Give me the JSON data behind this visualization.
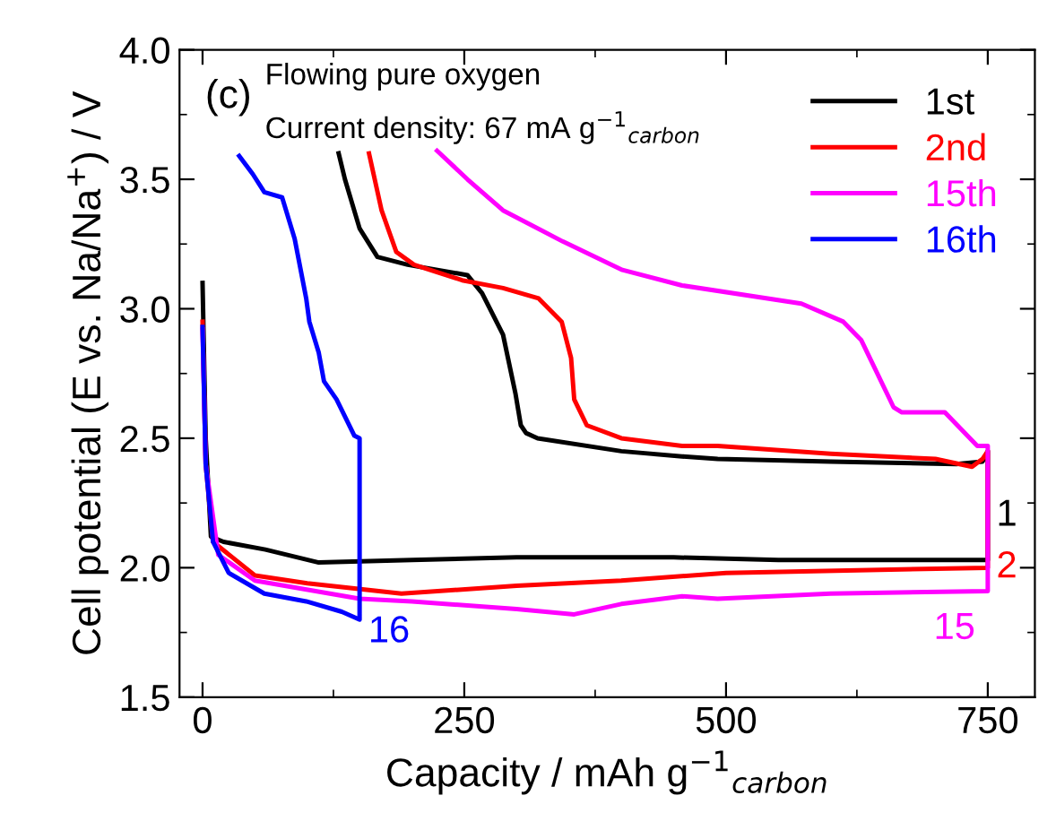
{
  "chart_data": {
    "type": "line",
    "xlabel": "Capacity / mAh g$^{−1}$$_{carbon}$",
    "ylabel": "Cell potential (E vs. Na/Na$^{+}$) / V",
    "xlim": [
      -22,
      795
    ],
    "ylim": [
      1.5,
      4.0
    ],
    "xticks": [
      0,
      250,
      500,
      750
    ],
    "yticks": [
      1.5,
      {
        "value": 2,
        "label": "2.0"
      },
      2.5,
      {
        "value": 3,
        "label": "3.0"
      },
      3.5,
      {
        "value": 4,
        "label": "4.0"
      }
    ],
    "grid": false,
    "legend": "top right",
    "line_style": "solid",
    "marker": "none",
    "series": [
      {
        "name": "1st",
        "color": "#000000",
        "x": [
          0,
          3,
          8,
          20,
          60,
          111,
          200,
          300,
          450,
          550,
          650,
          750,
          750,
          745,
          720,
          600,
          492,
          458,
          400,
          320,
          309,
          304,
          299,
          287,
          267,
          253,
          196,
          167,
          150,
          136,
          130
        ],
        "values": [
          3.1,
          2.5,
          2.12,
          2.1,
          2.07,
          2.02,
          2.03,
          2.04,
          2.04,
          2.03,
          2.03,
          2.03,
          2.45,
          2.41,
          2.4,
          2.41,
          2.42,
          2.43,
          2.45,
          2.5,
          2.52,
          2.55,
          2.67,
          2.9,
          3.06,
          3.13,
          3.17,
          3.2,
          3.31,
          3.5,
          3.6
        ]
      },
      {
        "name": "2nd",
        "color": "#ff0000",
        "x": [
          0,
          3,
          10,
          50,
          100,
          190,
          300,
          400,
          500,
          750,
          750,
          745,
          735,
          700,
          600,
          492,
          458,
          400,
          367,
          355,
          352,
          343,
          321,
          287,
          248,
          202,
          185,
          171,
          159
        ],
        "values": [
          2.95,
          2.4,
          2.1,
          1.97,
          1.94,
          1.9,
          1.93,
          1.95,
          1.98,
          2.0,
          2.45,
          2.42,
          2.39,
          2.42,
          2.44,
          2.47,
          2.47,
          2.5,
          2.55,
          2.65,
          2.81,
          2.95,
          3.04,
          3.08,
          3.11,
          3.17,
          3.22,
          3.38,
          3.6
        ]
      },
      {
        "name": "15th",
        "color": "#ff00ff",
        "x": [
          0,
          3,
          15,
          50,
          150,
          200,
          300,
          355,
          400,
          458,
          492,
          600,
          750,
          750,
          740,
          709,
          668,
          660,
          629,
          612,
          572,
          458,
          401,
          344,
          287,
          253,
          224
        ],
        "values": [
          2.92,
          2.4,
          2.05,
          1.95,
          1.88,
          1.87,
          1.84,
          1.82,
          1.86,
          1.89,
          1.88,
          1.9,
          1.91,
          2.47,
          2.47,
          2.6,
          2.6,
          2.62,
          2.88,
          2.95,
          3.02,
          3.09,
          3.15,
          3.26,
          3.38,
          3.5,
          3.61
        ]
      },
      {
        "name": "16th",
        "color": "#0000ff",
        "x": [
          0,
          3,
          10,
          25,
          59,
          99,
          133,
          150,
          150,
          145,
          128,
          116,
          111,
          102,
          99,
          88,
          76,
          59,
          48,
          35
        ],
        "values": [
          2.93,
          2.4,
          2.1,
          1.98,
          1.9,
          1.87,
          1.83,
          1.8,
          2.5,
          2.51,
          2.65,
          2.72,
          2.83,
          2.95,
          3.04,
          3.27,
          3.43,
          3.45,
          3.52,
          3.59
        ]
      }
    ],
    "annotations": [
      "1",
      "2",
      "15",
      "16",
      "(c)",
      "Flowing pure oxygen",
      "Current density: 67 mA g$^{−1}$$_{carbon}$"
    ]
  }
}
